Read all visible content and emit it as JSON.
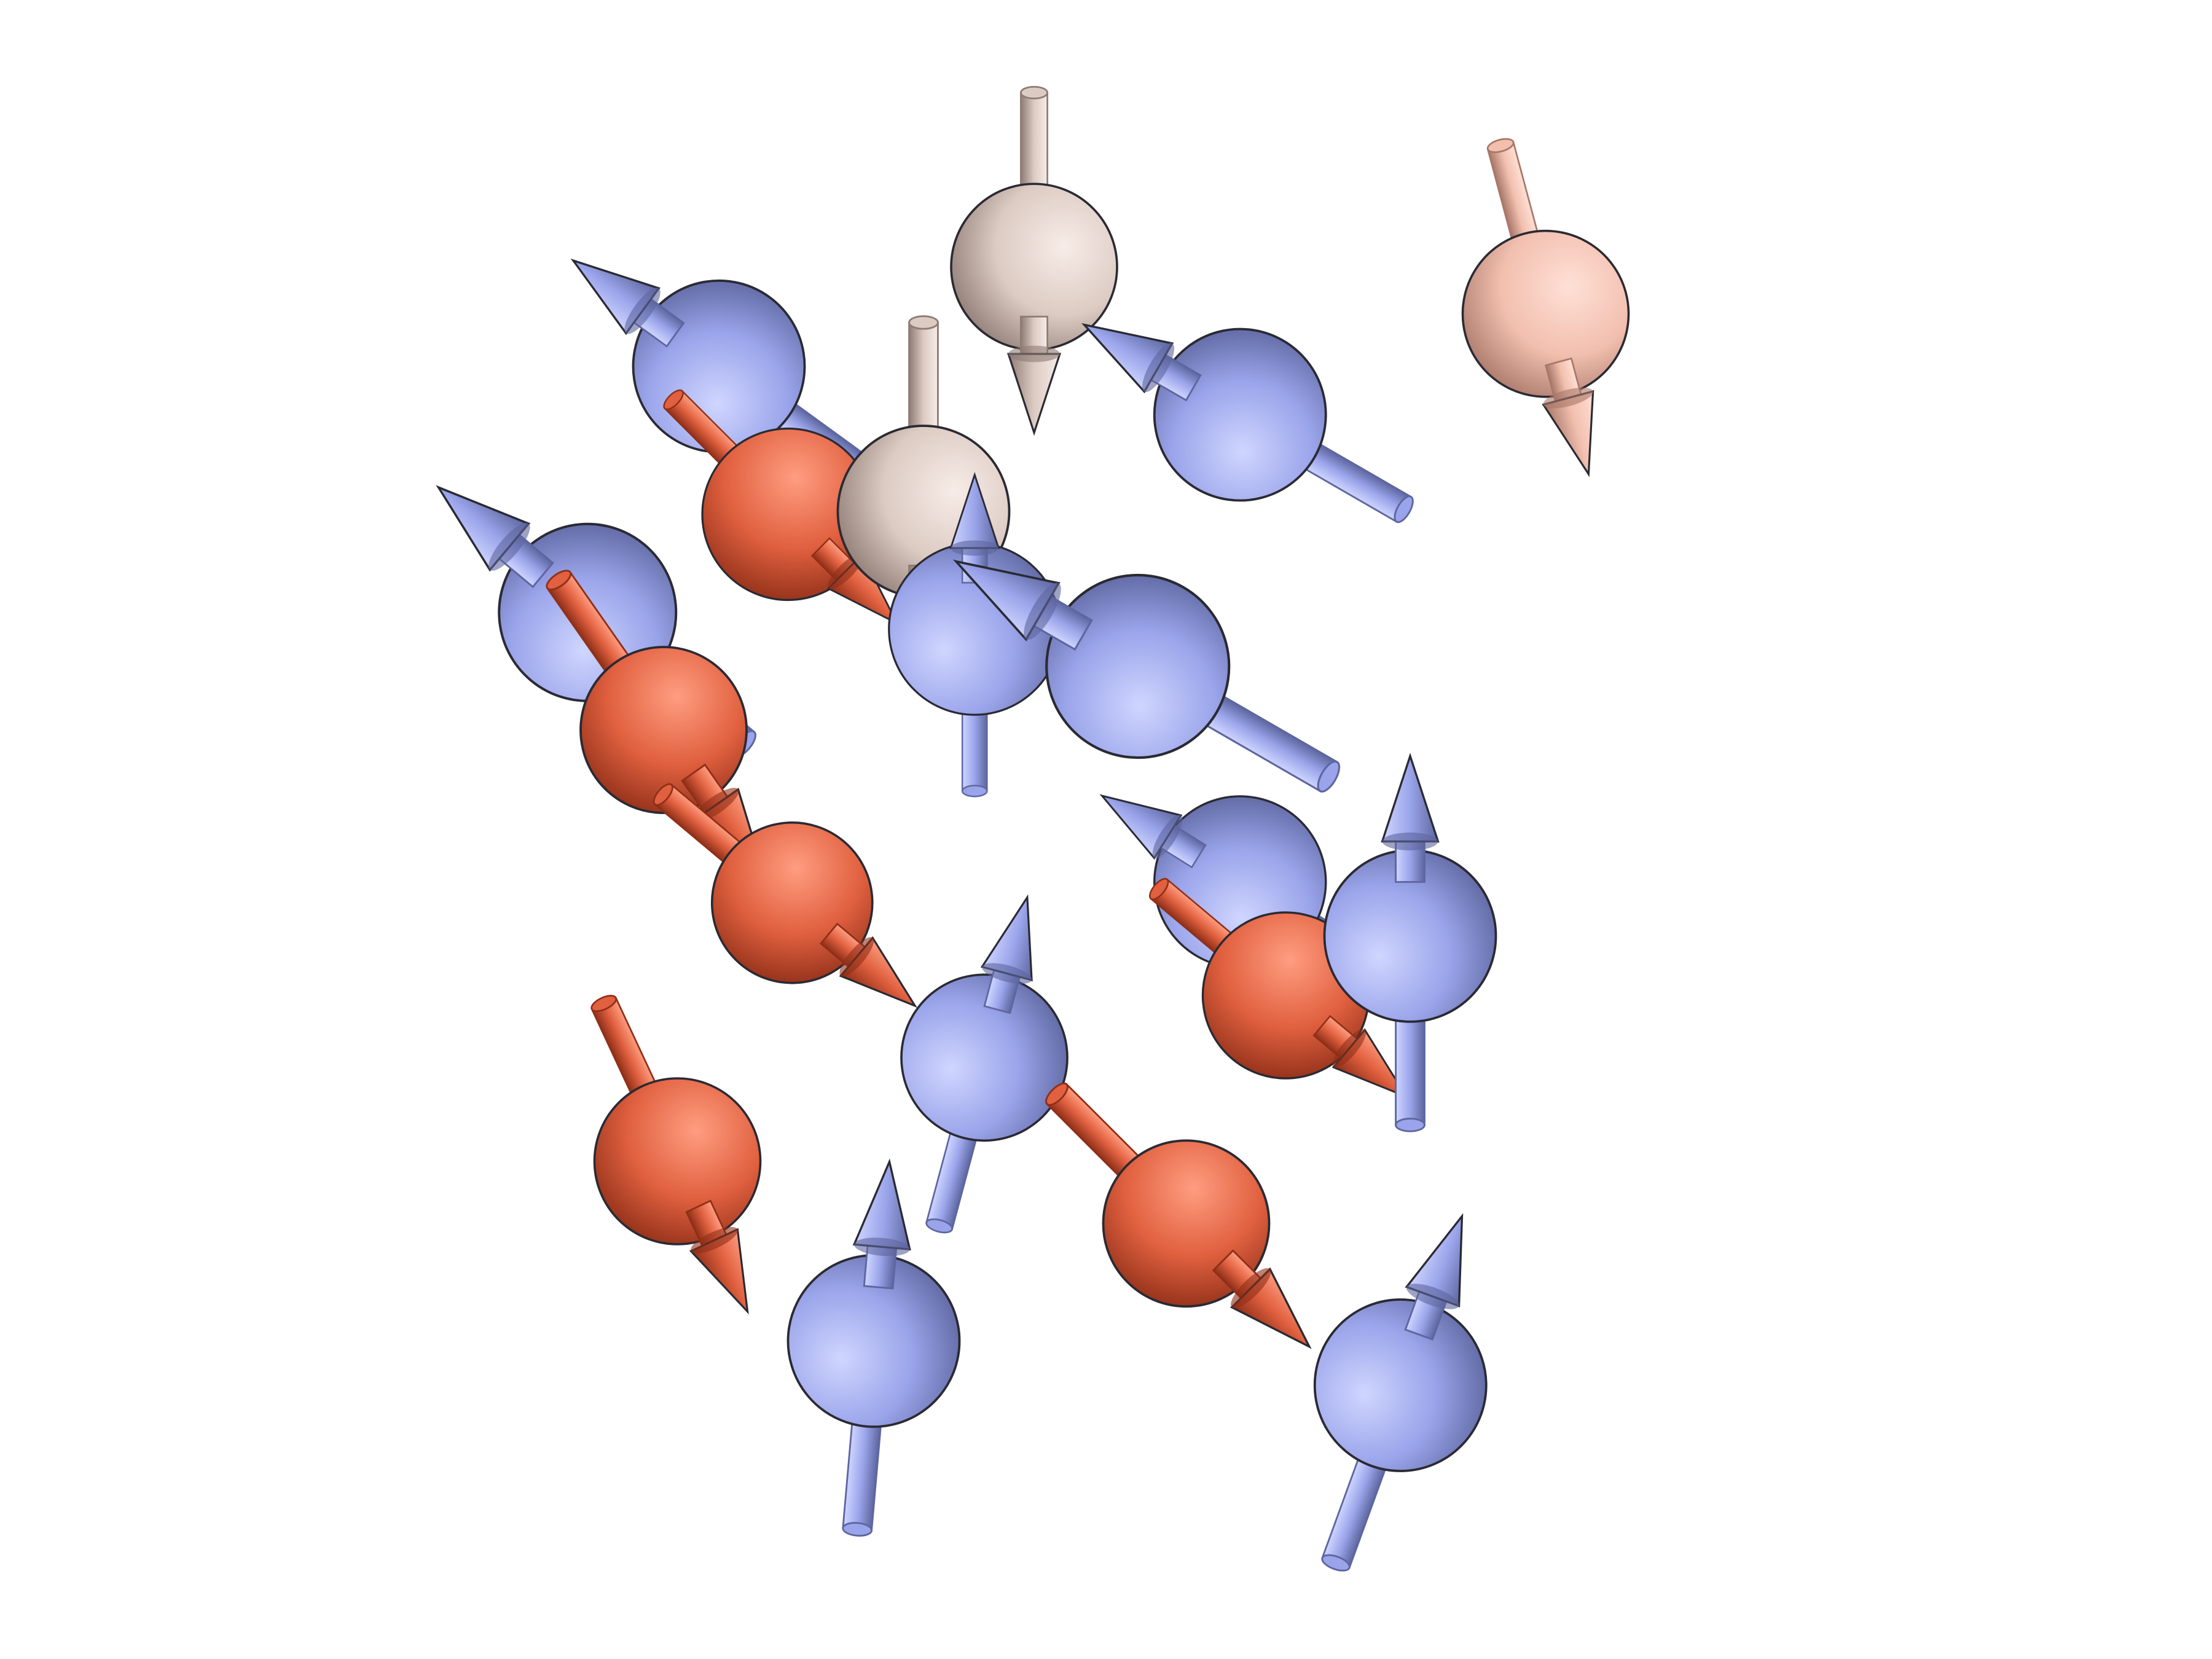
{
  "figure": {
    "kind": "magnetic-spin-configuration",
    "background_color": "#ffffff",
    "colors": {
      "blue": {
        "light": "#cfd6ff",
        "base": "#9aa4ea",
        "dark": "#5d669f"
      },
      "red": {
        "light": "#ff9d80",
        "base": "#e0603f",
        "dark": "#8f2f18"
      },
      "pink": {
        "light": "#ffe0d6",
        "base": "#f2bfae",
        "dark": "#a87768"
      },
      "beige": {
        "light": "#f7ece7",
        "base": "#dccbc3",
        "dark": "#8e7c74"
      }
    },
    "spins": [
      {
        "name": "spin-blue-upper-left",
        "color": "blue",
        "direction_deg": 144
      },
      {
        "name": "spin-red-behind-upper-left",
        "color": "red",
        "direction_deg": -45
      },
      {
        "name": "spin-beige-top",
        "color": "beige",
        "direction_deg": -90
      },
      {
        "name": "spin-beige-center",
        "color": "beige",
        "direction_deg": -90
      },
      {
        "name": "spin-blue-hidden-center",
        "color": "blue",
        "direction_deg": 90
      },
      {
        "name": "spin-blue-upper-right",
        "color": "blue",
        "direction_deg": 150
      },
      {
        "name": "spin-pink-right",
        "color": "pink",
        "direction_deg": -75
      },
      {
        "name": "spin-blue-left",
        "color": "blue",
        "direction_deg": 140
      },
      {
        "name": "spin-red-left",
        "color": "red",
        "direction_deg": -55
      },
      {
        "name": "spin-red-left-lower",
        "color": "red",
        "direction_deg": -40
      },
      {
        "name": "spin-blue-center-large",
        "color": "blue",
        "direction_deg": 150
      },
      {
        "name": "spin-blue-behind-right",
        "color": "blue",
        "direction_deg": 148
      },
      {
        "name": "spin-red-behind-right",
        "color": "red",
        "direction_deg": -40
      },
      {
        "name": "spin-red-right",
        "color": "red",
        "direction_deg": -50
      },
      {
        "name": "spin-blue-right",
        "color": "blue",
        "direction_deg": 90
      },
      {
        "name": "spin-blue-middle-lower",
        "color": "blue",
        "direction_deg": 75
      },
      {
        "name": "spin-red-lower-left",
        "color": "red",
        "direction_deg": -65
      },
      {
        "name": "spin-blue-lower-center",
        "color": "blue",
        "direction_deg": 85
      },
      {
        "name": "spin-red-lower-center",
        "color": "red",
        "direction_deg": -45
      },
      {
        "name": "spin-blue-lower-right",
        "color": "blue",
        "direction_deg": 70
      }
    ]
  }
}
